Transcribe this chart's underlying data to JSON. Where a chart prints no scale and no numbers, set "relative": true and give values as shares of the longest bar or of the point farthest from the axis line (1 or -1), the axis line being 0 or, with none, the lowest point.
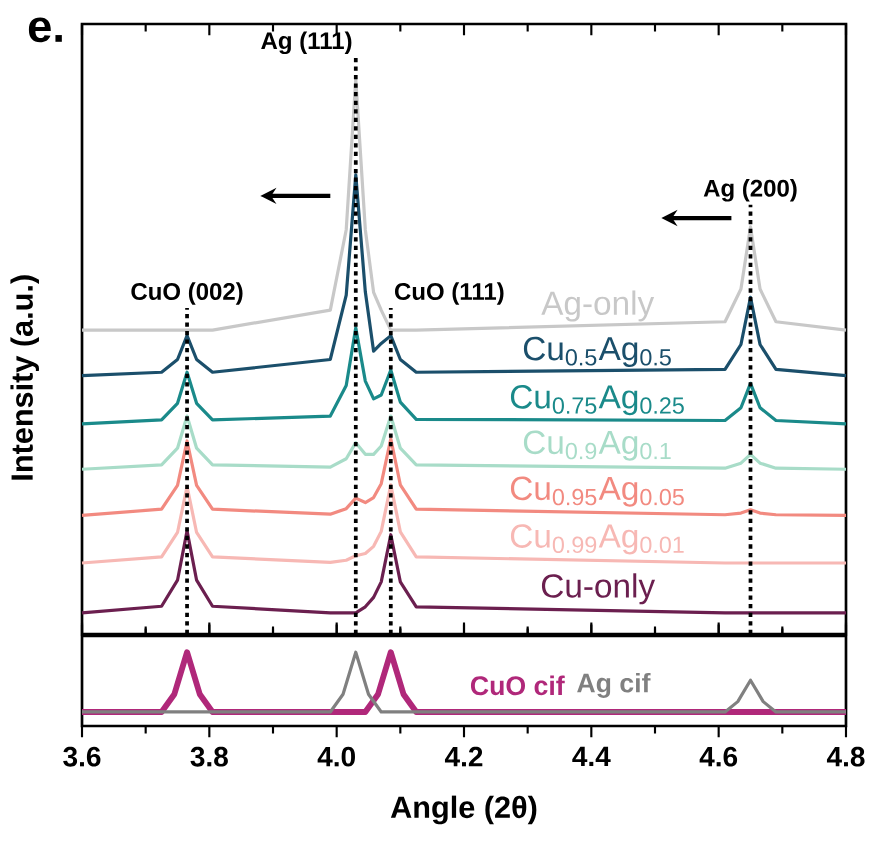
{
  "chart_data": [
    {
      "type": "line",
      "title": "e.",
      "ylabel": "Intensity (a.u.)",
      "relative": true,
      "xlim": [
        3.6,
        4.8
      ],
      "xticks": [
        3.6,
        3.8,
        4.0,
        4.2,
        4.4,
        4.6,
        4.8
      ],
      "tick_labels": false,
      "x": [
        3.6,
        3.725,
        3.75,
        3.765,
        3.78,
        3.805,
        3.99,
        4.015,
        4.03,
        4.045,
        4.058,
        4.07,
        4.085,
        4.1,
        4.125,
        4.61,
        4.635,
        4.65,
        4.665,
        4.69,
        4.8
      ],
      "series": [
        {
          "name": "Ag-only",
          "color": "#c8c8c8",
          "values": [
            0.548,
            0.548,
            0.548,
            0.548,
            0.548,
            0.548,
            0.584,
            0.729,
            1.0,
            0.729,
            0.616,
            0.584,
            0.548,
            0.548,
            0.548,
            0.563,
            0.622,
            0.734,
            0.622,
            0.563,
            0.548
          ]
        },
        {
          "name": "Cu$_{0.5}$Ag$_{0.5}$",
          "color": "#1b4f6b",
          "values": [
            0.466,
            0.472,
            0.495,
            0.538,
            0.495,
            0.472,
            0.495,
            0.611,
            0.828,
            0.617,
            0.51,
            0.524,
            0.538,
            0.495,
            0.472,
            0.477,
            0.522,
            0.607,
            0.522,
            0.477,
            0.466
          ]
        },
        {
          "name": "Cu$_{0.75}$Ag$_{0.25}$",
          "color": "#1a8a8a",
          "values": [
            0.379,
            0.386,
            0.416,
            0.472,
            0.416,
            0.386,
            0.393,
            0.448,
            0.552,
            0.456,
            0.424,
            0.431,
            0.476,
            0.418,
            0.387,
            0.385,
            0.408,
            0.452,
            0.408,
            0.385,
            0.379
          ]
        },
        {
          "name": "Cu$_{0.9}$Ag$_{0.1}$",
          "color": "#a8dcc8",
          "values": [
            0.297,
            0.305,
            0.335,
            0.393,
            0.335,
            0.305,
            0.301,
            0.316,
            0.345,
            0.324,
            0.324,
            0.339,
            0.393,
            0.335,
            0.305,
            0.299,
            0.308,
            0.324,
            0.308,
            0.299,
            0.297
          ]
        },
        {
          "name": "Cu$_{0.95}$Ag$_{0.05}$",
          "color": "#f28a80",
          "values": [
            0.214,
            0.225,
            0.268,
            0.348,
            0.268,
            0.225,
            0.216,
            0.226,
            0.245,
            0.237,
            0.246,
            0.271,
            0.352,
            0.269,
            0.225,
            0.215,
            0.218,
            0.224,
            0.218,
            0.215,
            0.214
          ]
        },
        {
          "name": "Cu$_{0.99}$Ag$_{0.01}$",
          "color": "#f7b8b4",
          "values": [
            0.128,
            0.139,
            0.183,
            0.266,
            0.183,
            0.139,
            0.129,
            0.133,
            0.141,
            0.145,
            0.158,
            0.185,
            0.269,
            0.184,
            0.139,
            0.128,
            0.128,
            0.128,
            0.128,
            0.128,
            0.128
          ]
        },
        {
          "name": "Cu-only",
          "color": "#6b1f4f",
          "values": [
            0.038,
            0.05,
            0.097,
            0.186,
            0.097,
            0.05,
            0.038,
            0.038,
            0.038,
            0.049,
            0.066,
            0.094,
            0.179,
            0.094,
            0.049,
            0.038,
            0.038,
            0.038,
            0.038,
            0.038,
            0.038
          ]
        }
      ],
      "ref_lines": [
        {
          "axis": "x",
          "value": 3.765,
          "label": "CuO (002)",
          "color": "#000000",
          "line_style": "dotted"
        },
        {
          "axis": "x",
          "value": 4.03,
          "label": "Ag (111)",
          "color": "#000000",
          "line_style": "dotted"
        },
        {
          "axis": "x",
          "value": 4.085,
          "label": "CuO (111)",
          "color": "#000000",
          "line_style": "dotted"
        },
        {
          "axis": "x",
          "value": 4.65,
          "label": "Ag (200)",
          "color": "#000000",
          "line_style": "dotted"
        }
      ]
    },
    {
      "type": "line",
      "xlabel": "Angle (2θ)",
      "relative": true,
      "xlim": [
        3.6,
        4.8
      ],
      "xticks": [
        3.6,
        3.8,
        {
          "value": 4.0,
          "label": "4.0"
        },
        4.2,
        4.4,
        4.6,
        4.8
      ],
      "tick_labels": "x",
      "series": [
        {
          "name": "CuO cif",
          "color": "#b0287a",
          "x": [
            3.6,
            3.725,
            3.745,
            3.765,
            3.785,
            3.805,
            4.045,
            4.065,
            4.085,
            4.105,
            4.125,
            4.8
          ],
          "values": [
            0.19,
            0.19,
            0.43,
            1.0,
            0.43,
            0.19,
            0.19,
            0.43,
            1.0,
            0.43,
            0.19,
            0.19
          ]
        },
        {
          "name": "Ag cif",
          "color": "#808080",
          "x": [
            3.6,
            3.99,
            4.01,
            4.03,
            4.05,
            4.07,
            4.61,
            4.63,
            4.65,
            4.67,
            4.69,
            4.8
          ],
          "values": [
            0.19,
            0.19,
            0.43,
            1.0,
            0.43,
            0.19,
            0.19,
            0.33,
            0.62,
            0.33,
            0.19,
            0.19
          ]
        }
      ]
    }
  ]
}
